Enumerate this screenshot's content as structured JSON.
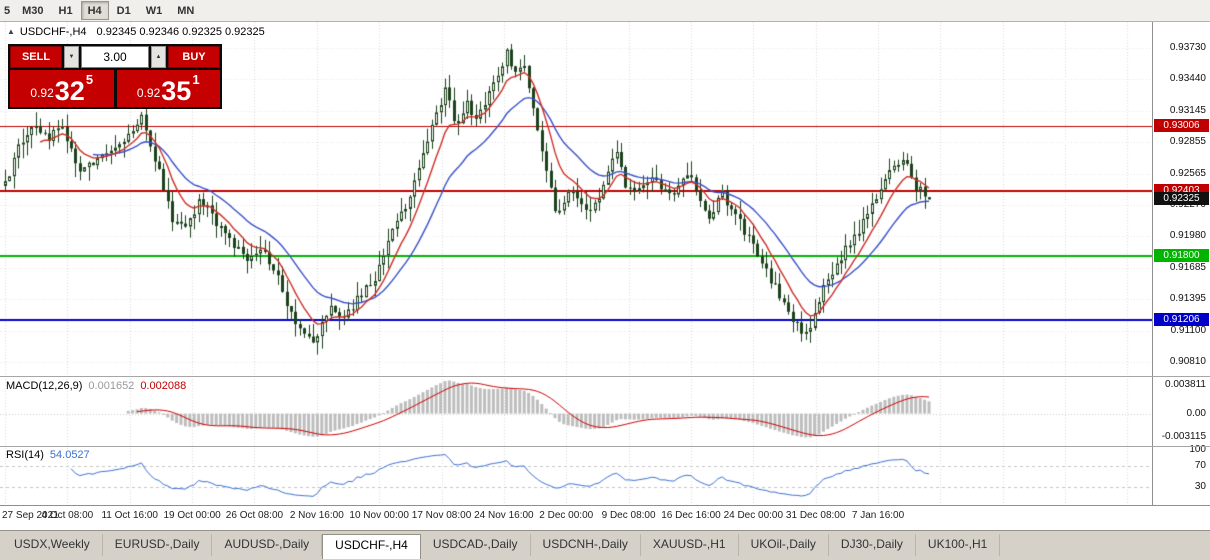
{
  "toolbar": {
    "timeframes": [
      "5",
      "M30",
      "H1",
      "H4",
      "D1",
      "W1",
      "MN"
    ],
    "active": "H4"
  },
  "chart_header": {
    "collapse_icon": "▲",
    "symbol_period": "USDCHF-,H4",
    "quotes": "0.92345 0.92346 0.92325 0.92325"
  },
  "trade_panel": {
    "sell_label": "SELL",
    "buy_label": "BUY",
    "volume": "3.00",
    "spinner_up": "▲",
    "spinner_down": "▼",
    "sell_price": {
      "prefix": "0.92",
      "big": "32",
      "sup": "5"
    },
    "buy_price": {
      "prefix": "0.92",
      "big": "35",
      "sup": "1"
    }
  },
  "price_scale": {
    "ticks": [
      {
        "label": "0.93730",
        "v": 0.9373
      },
      {
        "label": "0.93440",
        "v": 0.9344
      },
      {
        "label": "0.93145",
        "v": 0.93145
      },
      {
        "label": "0.92855",
        "v": 0.92855
      },
      {
        "label": "0.92565",
        "v": 0.92565
      },
      {
        "label": "0.92270",
        "v": 0.9227
      },
      {
        "label": "0.91980",
        "v": 0.9198
      },
      {
        "label": "0.91685",
        "v": 0.91685
      },
      {
        "label": "0.91395",
        "v": 0.91395
      },
      {
        "label": "0.91100",
        "v": 0.911
      },
      {
        "label": "0.90810",
        "v": 0.9081
      }
    ]
  },
  "tags": [
    {
      "label": "0.93006",
      "v": 0.93006,
      "bg": "#c00000"
    },
    {
      "label": "0.92403",
      "v": 0.92403,
      "bg": "#c00000"
    },
    {
      "label": "0.92325",
      "v": 0.92325,
      "bg": "#111111"
    },
    {
      "label": "0.91800",
      "v": 0.918,
      "bg": "#00b400"
    },
    {
      "label": "0.91206",
      "v": 0.91206,
      "bg": "#0000c8"
    }
  ],
  "macd_panel": {
    "label": "MACD(12,26,9)",
    "main_value": "0.001652",
    "signal_value": "0.002088",
    "ticks": [
      {
        "label": "0.003811",
        "v": 0.003811
      },
      {
        "label": "0.00",
        "v": 0
      },
      {
        "label": "-0.003115",
        "v": -0.003115
      }
    ]
  },
  "rsi_panel": {
    "label": "RSI(14)",
    "value": "54.0527",
    "ticks": [
      {
        "label": "100",
        "v": 100
      },
      {
        "label": "70",
        "v": 70
      },
      {
        "label": "30",
        "v": 30
      }
    ],
    "levels": [
      70,
      30
    ]
  },
  "time_axis": {
    "labels": [
      "27 Sep 2021",
      "4 Oct 08:00",
      "11 Oct 16:00",
      "19 Oct 00:00",
      "26 Oct 08:00",
      "2 Nov 16:00",
      "10 Nov 00:00",
      "17 Nov 08:00",
      "24 Nov 16:00",
      "2 Dec 00:00",
      "9 Dec 08:00",
      "16 Dec 16:00",
      "24 Dec 00:00",
      "31 Dec 08:00",
      "7 Jan 16:00"
    ]
  },
  "tabs": {
    "active": "USDCHF-,H4",
    "items": [
      "USDX,Weekly",
      "EURUSD-,Daily",
      "AUDUSD-,Daily",
      "USDCHF-,H4",
      "USDCAD-,Daily",
      "USDCNH-,Daily",
      "XAUUSD-,H1",
      "UKOil-,Daily",
      "DJ30-,Daily",
      "UK100-,H1"
    ]
  },
  "chart_data": {
    "type": "candlestick",
    "symbol": "USDCHF-",
    "timeframe": "H4",
    "bid": 0.92325,
    "ask": 0.92351,
    "last_bar": {
      "o": 0.92345,
      "h": 0.92346,
      "l": 0.92325,
      "c": 0.92325
    },
    "price_range": {
      "top": 0.939,
      "bottom": 0.9072
    },
    "bars": 211,
    "time_gridlines": 19,
    "anchors": [
      [
        0.0,
        0.9245
      ],
      [
        0.012,
        0.9278
      ],
      [
        0.03,
        0.9302
      ],
      [
        0.045,
        0.9288
      ],
      [
        0.06,
        0.93
      ],
      [
        0.08,
        0.9258
      ],
      [
        0.1,
        0.927
      ],
      [
        0.128,
        0.9282
      ],
      [
        0.148,
        0.9312
      ],
      [
        0.163,
        0.9268
      ],
      [
        0.18,
        0.9215
      ],
      [
        0.198,
        0.9207
      ],
      [
        0.21,
        0.9233
      ],
      [
        0.225,
        0.9216
      ],
      [
        0.248,
        0.919
      ],
      [
        0.262,
        0.9172
      ],
      [
        0.278,
        0.919
      ],
      [
        0.295,
        0.9158
      ],
      [
        0.31,
        0.9126
      ],
      [
        0.322,
        0.9106
      ],
      [
        0.335,
        0.9096
      ],
      [
        0.35,
        0.9134
      ],
      [
        0.365,
        0.912
      ],
      [
        0.382,
        0.914
      ],
      [
        0.4,
        0.9158
      ],
      [
        0.418,
        0.9206
      ],
      [
        0.432,
        0.9222
      ],
      [
        0.45,
        0.9268
      ],
      [
        0.466,
        0.9308
      ],
      [
        0.478,
        0.9338
      ],
      [
        0.488,
        0.93
      ],
      [
        0.5,
        0.932
      ],
      [
        0.512,
        0.9308
      ],
      [
        0.528,
        0.9338
      ],
      [
        0.543,
        0.937
      ],
      [
        0.553,
        0.9348
      ],
      [
        0.563,
        0.9356
      ],
      [
        0.576,
        0.9298
      ],
      [
        0.587,
        0.9255
      ],
      [
        0.598,
        0.9216
      ],
      [
        0.61,
        0.924
      ],
      [
        0.622,
        0.923
      ],
      [
        0.635,
        0.922
      ],
      [
        0.648,
        0.9246
      ],
      [
        0.66,
        0.928
      ],
      [
        0.671,
        0.9246
      ],
      [
        0.683,
        0.9238
      ],
      [
        0.696,
        0.925
      ],
      [
        0.71,
        0.9246
      ],
      [
        0.724,
        0.924
      ],
      [
        0.737,
        0.926
      ],
      [
        0.75,
        0.9236
      ],
      [
        0.762,
        0.9216
      ],
      [
        0.775,
        0.9238
      ],
      [
        0.79,
        0.922
      ],
      [
        0.805,
        0.9196
      ],
      [
        0.818,
        0.9178
      ],
      [
        0.832,
        0.9152
      ],
      [
        0.845,
        0.9132
      ],
      [
        0.858,
        0.9114
      ],
      [
        0.87,
        0.9106
      ],
      [
        0.882,
        0.9144
      ],
      [
        0.895,
        0.9166
      ],
      [
        0.908,
        0.9184
      ],
      [
        0.921,
        0.92
      ],
      [
        0.935,
        0.9222
      ],
      [
        0.95,
        0.9244
      ],
      [
        0.962,
        0.9266
      ],
      [
        0.974,
        0.927
      ],
      [
        0.986,
        0.9244
      ],
      [
        1.0,
        0.92345
      ]
    ],
    "hlines": [
      {
        "v": 0.93006,
        "color": "#c00000",
        "w": 1
      },
      {
        "v": 0.92403,
        "color": "#c00000",
        "w": 2
      },
      {
        "v": 0.918,
        "color": "#00b400",
        "w": 2
      },
      {
        "v": 0.91206,
        "color": "#0000c8",
        "w": 2
      }
    ],
    "ma": {
      "fast": {
        "period": 8,
        "color": "#cc2f26"
      },
      "slow": {
        "period": 20,
        "color": "#3a50c8"
      }
    },
    "macd": {
      "fast": 12,
      "slow": 26,
      "signal": 9,
      "hist_color": "#bdbdbd",
      "signal_color": "#cc0000"
    },
    "rsi": {
      "period": 14,
      "color": "#3c6fd1"
    },
    "candle_color": "#1c421c"
  }
}
